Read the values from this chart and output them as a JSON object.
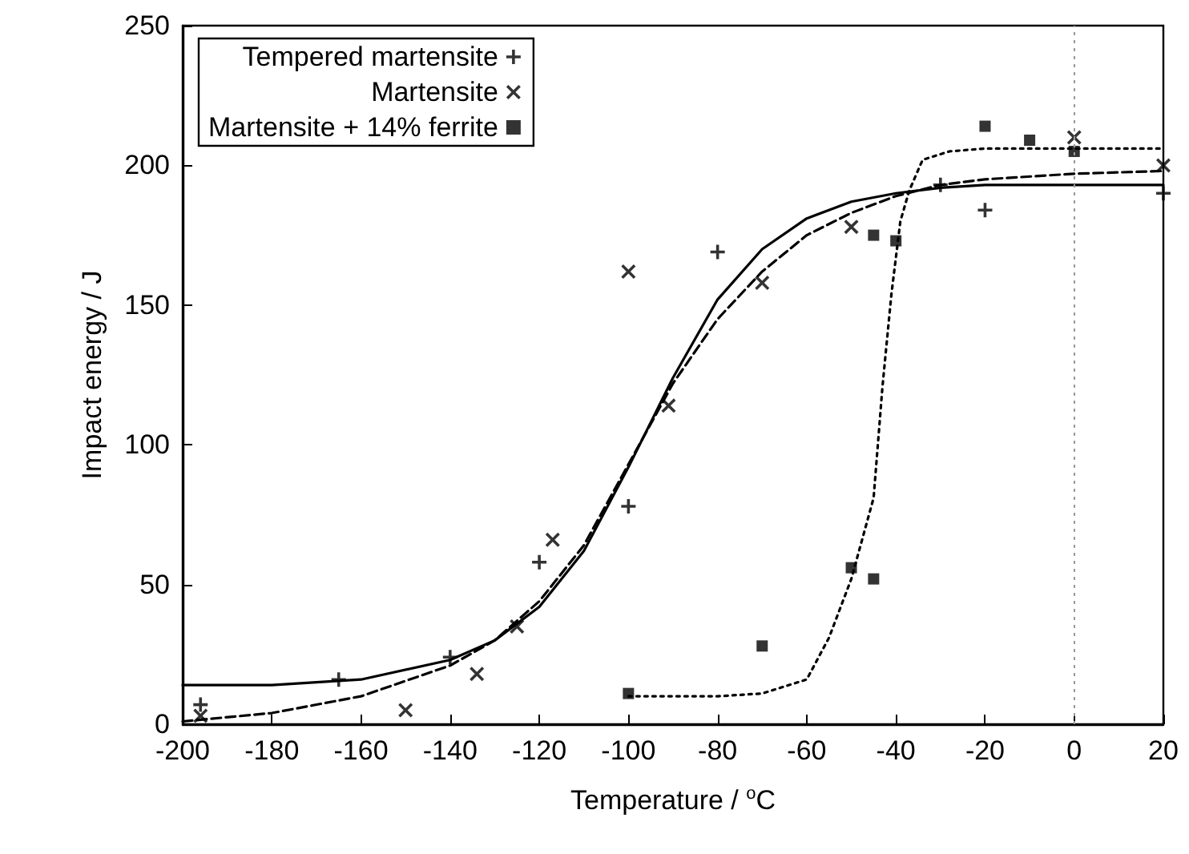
{
  "chart_data": {
    "type": "scatter",
    "xlabel": "Temperature / $^{o}$C",
    "ylabel": "Impact energy / J",
    "xlim": [
      -200,
      20
    ],
    "xticks": [
      -200,
      -180,
      -160,
      -140,
      -120,
      -100,
      -80,
      -60,
      -40,
      -20,
      0,
      20
    ],
    "ylim": [
      0,
      250
    ],
    "yticks": [
      0,
      50,
      100,
      150,
      200,
      250
    ],
    "grid": false,
    "legend": "top left",
    "ref_lines": [
      {
        "axis": "x",
        "value": 0,
        "color": "#999999",
        "line_style": "dotted"
      }
    ],
    "series": [
      {
        "name": "Tempered martensite",
        "marker": "cross",
        "color": "#000000",
        "x": [
          -196,
          -165,
          -140,
          -120,
          -100,
          -80,
          -30,
          -20,
          20
        ],
        "values": [
          7,
          16,
          24,
          58,
          78,
          169,
          193,
          184,
          190
        ]
      },
      {
        "name": "Martensite",
        "marker": "cross",
        "color": "#000000",
        "x": [
          -196,
          -150,
          -134,
          -125,
          -117,
          -100,
          -91,
          -70,
          -50,
          0,
          20
        ],
        "values": [
          3,
          5,
          18,
          35,
          66,
          162,
          114,
          158,
          178,
          210,
          200
        ]
      },
      {
        "name": "Martensite + 14% ferrite",
        "marker": "square",
        "color": "#000000",
        "x": [
          -100,
          -70,
          -50,
          -45,
          -45,
          -40,
          -20,
          -10,
          0
        ],
        "values": [
          11,
          28,
          56,
          52,
          175,
          173,
          214,
          209,
          205
        ]
      },
      {
        "type": "line",
        "line_style": "solid",
        "marker": "none",
        "color": "#000000",
        "x": [
          -200,
          -180,
          -160,
          -140,
          -130,
          -120,
          -110,
          -100,
          -90,
          -80,
          -70,
          -60,
          -50,
          -40,
          -30,
          -20,
          0,
          20
        ],
        "values": [
          14,
          14,
          16,
          23,
          30,
          42,
          62,
          92,
          124,
          152,
          170,
          181,
          187,
          190,
          192,
          193,
          193,
          193
        ]
      },
      {
        "type": "line",
        "line_style": "dashed",
        "marker": "none",
        "color": "#000000",
        "x": [
          -200,
          -180,
          -160,
          -140,
          -130,
          -120,
          -110,
          -100,
          -90,
          -80,
          -70,
          -60,
          -50,
          -40,
          -30,
          -20,
          0,
          20
        ],
        "values": [
          1,
          4,
          10,
          21,
          30,
          44,
          64,
          93,
          122,
          145,
          162,
          175,
          183,
          189,
          193,
          195,
          197,
          198
        ]
      },
      {
        "type": "line",
        "line_style": "dotted",
        "marker": "none",
        "color": "#000000",
        "x": [
          -100,
          -80,
          -70,
          -60,
          -55,
          -50,
          -45,
          -43,
          -41,
          -39,
          -37,
          -34,
          -28,
          -20,
          0,
          20
        ],
        "values": [
          10,
          10,
          11,
          16,
          31,
          52,
          81,
          121,
          154,
          180,
          191,
          202,
          205,
          206,
          206,
          206
        ]
      }
    ]
  }
}
